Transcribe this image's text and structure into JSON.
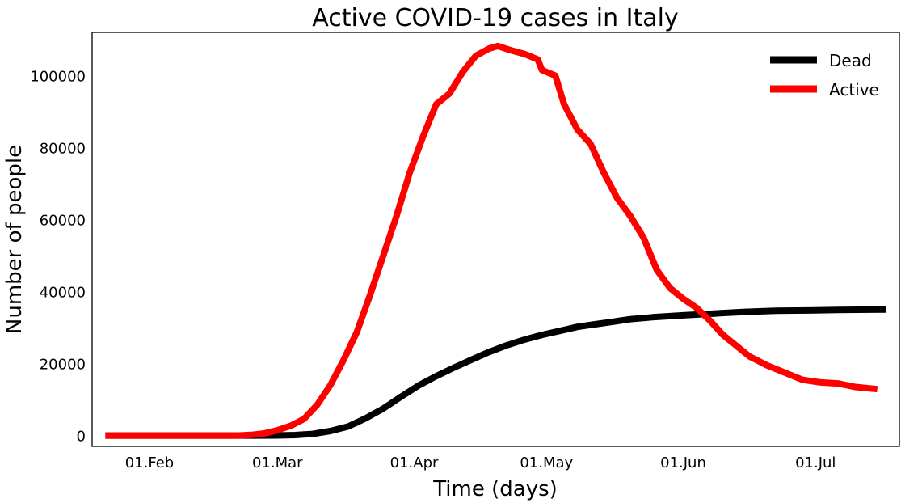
{
  "chart_data": {
    "type": "line",
    "title": "Active COVID-19 cases in Italy",
    "xlabel": "Time (days)",
    "ylabel": "Number of people",
    "x_ticks": [
      {
        "date": "2020-02-01",
        "label": "01.Feb"
      },
      {
        "date": "2020-03-01",
        "label": "01.Mar"
      },
      {
        "date": "2020-04-01",
        "label": "01.Apr"
      },
      {
        "date": "2020-05-01",
        "label": "01.May"
      },
      {
        "date": "2020-06-01",
        "label": "01.Jun"
      },
      {
        "date": "2020-07-01",
        "label": "01.Jul"
      }
    ],
    "y_ticks": [
      0,
      20000,
      40000,
      60000,
      80000,
      100000
    ],
    "xlim": [
      "2020-01-19",
      "2020-07-20"
    ],
    "ylim": [
      -3000,
      112000
    ],
    "grid": false,
    "legend_position": "top-right",
    "series": [
      {
        "name": "Dead",
        "color": "#000000",
        "points": [
          [
            "2020-01-22",
            0
          ],
          [
            "2020-02-21",
            0
          ],
          [
            "2020-02-25",
            10
          ],
          [
            "2020-03-01",
            34
          ],
          [
            "2020-03-05",
            148
          ],
          [
            "2020-03-09",
            463
          ],
          [
            "2020-03-13",
            1266
          ],
          [
            "2020-03-17",
            2503
          ],
          [
            "2020-03-21",
            4825
          ],
          [
            "2020-03-25",
            7503
          ],
          [
            "2020-03-29",
            10779
          ],
          [
            "2020-04-02",
            13915
          ],
          [
            "2020-04-06",
            16523
          ],
          [
            "2020-04-10",
            18849
          ],
          [
            "2020-04-14",
            21067
          ],
          [
            "2020-04-18",
            23227
          ],
          [
            "2020-04-22",
            25085
          ],
          [
            "2020-04-26",
            26644
          ],
          [
            "2020-04-30",
            27967
          ],
          [
            "2020-05-04",
            29079
          ],
          [
            "2020-05-08",
            30201
          ],
          [
            "2020-05-12",
            30911
          ],
          [
            "2020-05-16",
            31610
          ],
          [
            "2020-05-20",
            32330
          ],
          [
            "2020-05-25",
            32877
          ],
          [
            "2020-06-01",
            33415
          ],
          [
            "2020-06-08",
            33899
          ],
          [
            "2020-06-15",
            34371
          ],
          [
            "2020-06-22",
            34657
          ],
          [
            "2020-06-29",
            34767
          ],
          [
            "2020-07-06",
            34899
          ],
          [
            "2020-07-13",
            34984
          ],
          [
            "2020-07-17",
            35017
          ]
        ]
      },
      {
        "name": "Active",
        "color": "#ff0000",
        "points": [
          [
            "2020-01-22",
            0
          ],
          [
            "2020-02-18",
            0
          ],
          [
            "2020-02-21",
            20
          ],
          [
            "2020-02-24",
            200
          ],
          [
            "2020-02-27",
            600
          ],
          [
            "2020-03-01",
            1500
          ],
          [
            "2020-03-04",
            2700
          ],
          [
            "2020-03-07",
            4600
          ],
          [
            "2020-03-10",
            8500
          ],
          [
            "2020-03-13",
            14000
          ],
          [
            "2020-03-16",
            21000
          ],
          [
            "2020-03-19",
            28700
          ],
          [
            "2020-03-22",
            39000
          ],
          [
            "2020-03-25",
            50000
          ],
          [
            "2020-03-28",
            61000
          ],
          [
            "2020-03-31",
            73000
          ],
          [
            "2020-04-03",
            83000
          ],
          [
            "2020-04-06",
            92000
          ],
          [
            "2020-04-09",
            95000
          ],
          [
            "2020-04-12",
            101000
          ],
          [
            "2020-04-15",
            105500
          ],
          [
            "2020-04-18",
            107500
          ],
          [
            "2020-04-20",
            108200
          ],
          [
            "2020-04-23",
            107000
          ],
          [
            "2020-04-26",
            106000
          ],
          [
            "2020-04-29",
            104500
          ],
          [
            "2020-04-30",
            101500
          ],
          [
            "2020-05-03",
            100000
          ],
          [
            "2020-05-05",
            92000
          ],
          [
            "2020-05-08",
            85000
          ],
          [
            "2020-05-11",
            81000
          ],
          [
            "2020-05-14",
            73000
          ],
          [
            "2020-05-17",
            66000
          ],
          [
            "2020-05-20",
            61000
          ],
          [
            "2020-05-23",
            55000
          ],
          [
            "2020-05-26",
            46000
          ],
          [
            "2020-05-29",
            41000
          ],
          [
            "2020-06-01",
            38000
          ],
          [
            "2020-06-04",
            35500
          ],
          [
            "2020-06-07",
            32000
          ],
          [
            "2020-06-10",
            28000
          ],
          [
            "2020-06-13",
            25000
          ],
          [
            "2020-06-16",
            22000
          ],
          [
            "2020-06-20",
            19500
          ],
          [
            "2020-06-24",
            17500
          ],
          [
            "2020-06-28",
            15500
          ],
          [
            "2020-07-02",
            14800
          ],
          [
            "2020-07-06",
            14500
          ],
          [
            "2020-07-10",
            13500
          ],
          [
            "2020-07-15",
            12900
          ]
        ]
      }
    ]
  }
}
